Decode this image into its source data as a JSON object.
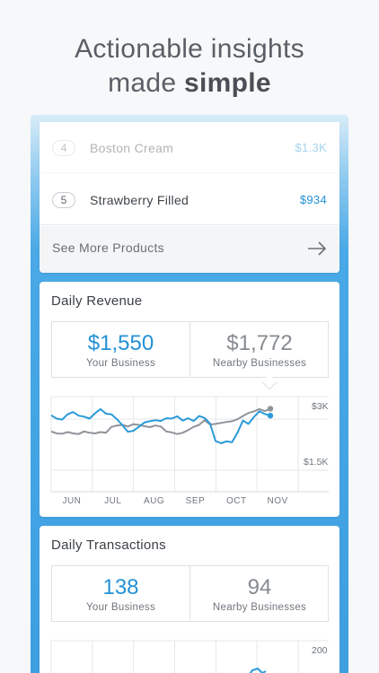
{
  "headline": {
    "line1": "Actionable insights",
    "line2_prefix": "made ",
    "line2_bold": "simple"
  },
  "products": [
    {
      "rank": "4",
      "name": "Boston Cream",
      "value": "$1.3K"
    },
    {
      "rank": "5",
      "name": "Strawberry Filled",
      "value": "$934"
    }
  ],
  "see_more_label": "See More Products",
  "colors": {
    "accent": "#2391d6",
    "gray": "#8c9197",
    "blue_line": "#2a9bd8",
    "gray_line": "#8f9499"
  },
  "daily_revenue": {
    "title": "Daily Revenue",
    "your_value": "$1,550",
    "your_label": "Your Business",
    "nearby_value": "$1,772",
    "nearby_label": "Nearby Businesses"
  },
  "daily_transactions": {
    "title": "Daily Transactions",
    "your_value": "138",
    "your_label": "Your Business",
    "nearby_value": "94",
    "nearby_label": "Nearby Businesses"
  },
  "chart_data": [
    {
      "type": "line",
      "x_labels": [
        "JUN",
        "JUL",
        "AUG",
        "SEP",
        "OCT",
        "NOV"
      ],
      "y_ticks": [
        "$3K",
        "$1.5K"
      ],
      "ylim": [
        0,
        3000
      ],
      "grid": true,
      "series": [
        {
          "values": [
            2050,
            1950,
            1920,
            2080,
            2150,
            2040,
            2010,
            1950,
            2110,
            2240,
            2100,
            2080,
            1930,
            1750,
            1550,
            1580,
            1700,
            1830,
            1870,
            1900,
            1880,
            1960,
            1950,
            2020,
            1890,
            1960,
            1880,
            2030,
            1970,
            1800,
            1270,
            1200,
            1260,
            1230,
            1520,
            1890,
            1790,
            2000,
            2170,
            2090,
            2040
          ]
        },
        {
          "values": [
            1560,
            1500,
            1490,
            1540,
            1500,
            1480,
            1560,
            1520,
            1500,
            1540,
            1520,
            1700,
            1740,
            1760,
            1710,
            1780,
            1760,
            1720,
            1690,
            1740,
            1710,
            1560,
            1530,
            1480,
            1520,
            1600,
            1700,
            1760,
            1900,
            1770,
            1790,
            1820,
            1850,
            1870,
            1930,
            2030,
            2120,
            2170,
            2240,
            2180,
            2250
          ]
        }
      ]
    },
    {
      "type": "line",
      "y_ticks": [
        "200"
      ],
      "grid": true
    }
  ]
}
